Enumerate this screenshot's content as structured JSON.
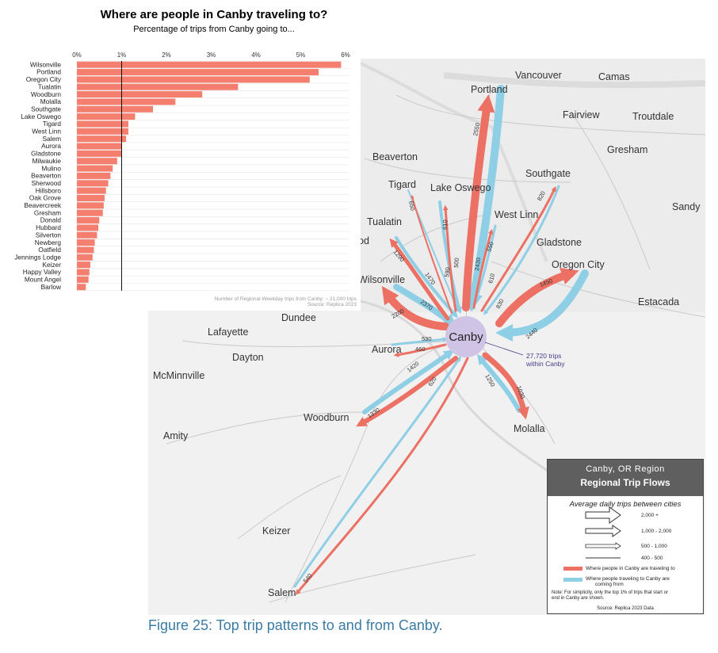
{
  "chart": {
    "title": "Where are people in Canby traveling to?",
    "subtitle": "Percentage of trips from Canby going to...",
    "footnote_line1": "Number of Regional Weekday trips from Canby: ~ 21,000 trips",
    "footnote_line2": "Source: Replica 2023"
  },
  "chart_data": {
    "type": "bar",
    "orientation": "horizontal",
    "categories": [
      "Wilsonville",
      "Portland",
      "Oregon City",
      "Tualatin",
      "Woodburn",
      "Molalla",
      "Southgate",
      "Lake Oswego",
      "Tigard",
      "West Linn",
      "Salem",
      "Aurora",
      "Gladstone",
      "Milwaukie",
      "Mulino",
      "Beaverton",
      "Sherwood",
      "Hillsboro",
      "Oak Grove",
      "Beavercreek",
      "Gresham",
      "Donald",
      "Hubbard",
      "Silverton",
      "Newberg",
      "Oatfield",
      "Jennings Lodge",
      "Keizer",
      "Happy Valley",
      "Mount Angel",
      "Barlow"
    ],
    "values": [
      5.9,
      5.4,
      5.2,
      3.6,
      2.8,
      2.2,
      1.7,
      1.3,
      1.15,
      1.15,
      1.1,
      1.0,
      1.0,
      0.9,
      0.8,
      0.75,
      0.7,
      0.65,
      0.62,
      0.6,
      0.58,
      0.5,
      0.48,
      0.45,
      0.4,
      0.38,
      0.35,
      0.3,
      0.28,
      0.26,
      0.2
    ],
    "x_ticks": [
      "0%",
      "1%",
      "2%",
      "3%",
      "4%",
      "5%",
      "6%"
    ],
    "xlim": [
      0,
      6
    ],
    "reference_line": 1,
    "bar_color": "#f47f6e"
  },
  "map": {
    "places": [
      "Vancouver",
      "Camas",
      "Portland",
      "Fairview",
      "Troutdale",
      "Gresham",
      "Beaverton",
      "Southgate",
      "Tigard",
      "Lake Oswego",
      "Sandy",
      "West Linn",
      "Tualatin",
      "Gladstone",
      "od",
      "Oregon City",
      "Wilsonville",
      "Estacada",
      "Dundee",
      "Lafayette",
      "Dayton",
      "McMinnville",
      "Aurora",
      "Woodburn",
      "Molalla",
      "Amity",
      "Keizer",
      "Salem"
    ],
    "center_label": "Canby",
    "within_line1": "27,720 trips",
    "within_line2": "within Canby",
    "flow_labels": [
      "2550",
      "2430",
      "820",
      "610",
      "550",
      "610",
      "500",
      "590",
      "1470",
      "830",
      "650",
      "1290",
      "2370",
      "1450",
      "2440",
      "2200",
      "530",
      "460",
      "1420",
      "1330",
      "620",
      "1250",
      "1030",
      "540"
    ],
    "colors": {
      "to": "#ec7063",
      "from": "#8ecfe6",
      "center": "#cfc4e6",
      "within": "#4b3a8a"
    }
  },
  "legend": {
    "title_line1": "Canby, OR Region",
    "title_line2": "Regional Trip Flows",
    "subtitle": "Average daily trips between cities",
    "sizes": [
      "2,000 +",
      "1,000 - 2,000",
      "500 - 1,000",
      "400 - 500"
    ],
    "to_label": "Where people in Canby are traveling to",
    "from_label_line1": "Where people traveling to Canby are",
    "from_label_line2": "coming from",
    "note_line1": "Note: For simplicity, only the top 1% of trips that start or",
    "note_line2": "end in Canby are shown.",
    "source": "Source: Replica 2023 Data"
  },
  "caption": "Figure 25: Top trip patterns to and from Canby."
}
